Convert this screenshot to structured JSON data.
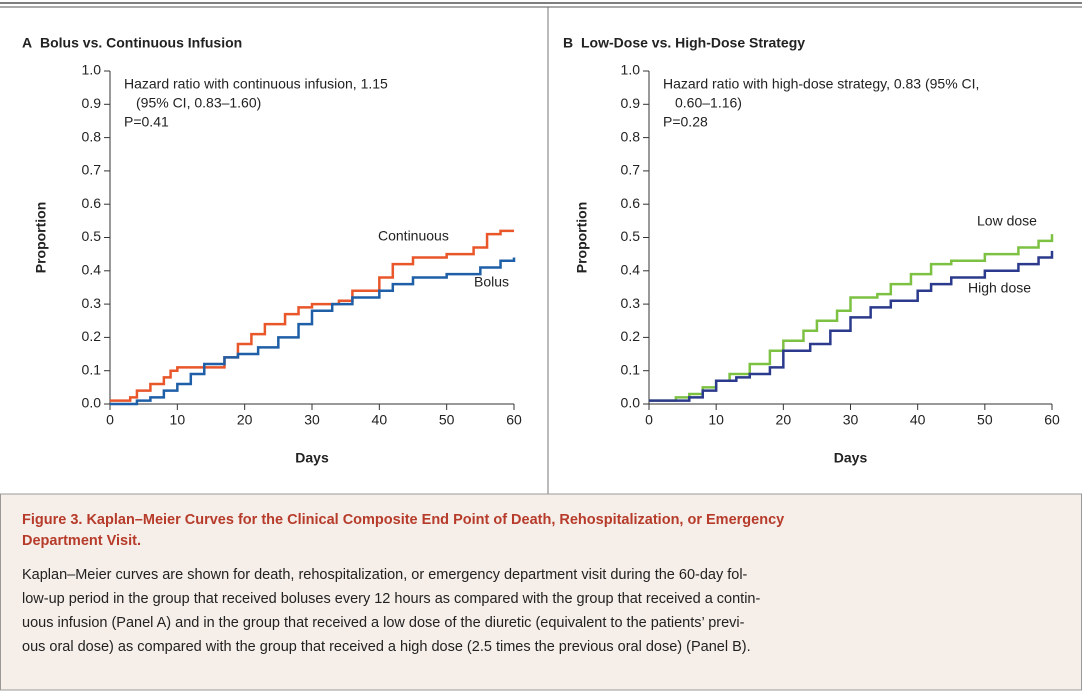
{
  "chart_data": [
    {
      "type": "step",
      "panel": "A",
      "title": "Bolus vs. Continuous Infusion",
      "xlabel": "Days",
      "ylabel": "Proportion",
      "annotations": [
        "Hazard ratio with continuous infusion, 1.15",
        "(95% CI, 0.83–1.60)",
        "P=0.41"
      ],
      "xlim": [
        0,
        60
      ],
      "xticks": [
        0,
        10,
        20,
        30,
        40,
        50,
        60
      ],
      "ylim": [
        0,
        1
      ],
      "yticks": [
        {
          "value": 0,
          "label": "0.0"
        },
        0.1,
        0.2,
        0.3,
        0.4,
        0.5,
        0.6,
        0.7,
        0.8,
        0.9,
        {
          "value": 1,
          "label": "1.0"
        }
      ],
      "series": [
        {
          "name": "Continuous",
          "color": "#e8562a",
          "x": [
            0,
            3,
            4,
            6,
            8,
            9,
            10,
            13,
            17,
            19,
            21,
            23,
            26,
            28,
            30,
            34,
            36,
            40,
            42,
            45,
            50,
            54,
            56,
            58,
            60
          ],
          "values": [
            0.01,
            0.02,
            0.04,
            0.06,
            0.08,
            0.1,
            0.11,
            0.11,
            0.14,
            0.18,
            0.21,
            0.24,
            0.27,
            0.29,
            0.3,
            0.31,
            0.34,
            0.38,
            0.42,
            0.44,
            0.45,
            0.47,
            0.51,
            0.52,
            0.52
          ]
        },
        {
          "name": "Bolus",
          "color": "#1f5fa8",
          "x": [
            0,
            4,
            6,
            8,
            10,
            12,
            14,
            17,
            19,
            22,
            25,
            28,
            30,
            33,
            36,
            40,
            42,
            45,
            50,
            55,
            58,
            60
          ],
          "values": [
            0,
            0.01,
            0.02,
            0.04,
            0.06,
            0.09,
            0.12,
            0.14,
            0.15,
            0.17,
            0.2,
            0.24,
            0.28,
            0.3,
            0.32,
            0.34,
            0.36,
            0.38,
            0.39,
            0.41,
            0.43,
            0.44
          ]
        }
      ]
    },
    {
      "type": "step",
      "panel": "B",
      "title": "Low-Dose vs. High-Dose Strategy",
      "xlabel": "Days",
      "ylabel": "Proportion",
      "annotations": [
        "Hazard ratio with high-dose strategy, 0.83 (95% CI,",
        "0.60–1.16)",
        "P=0.28"
      ],
      "xlim": [
        0,
        60
      ],
      "xticks": [
        0,
        10,
        20,
        30,
        40,
        50,
        60
      ],
      "ylim": [
        0,
        1
      ],
      "yticks": [
        {
          "value": 0,
          "label": "0.0"
        },
        0.1,
        0.2,
        0.3,
        0.4,
        0.5,
        0.6,
        0.7,
        0.8,
        0.9,
        {
          "value": 1,
          "label": "1.0"
        }
      ],
      "series": [
        {
          "name": "Low dose",
          "color": "#7dc143",
          "x": [
            0,
            4,
            6,
            8,
            10,
            12,
            15,
            18,
            20,
            23,
            25,
            28,
            30,
            34,
            36,
            39,
            42,
            45,
            50,
            55,
            58,
            60
          ],
          "values": [
            0.01,
            0.02,
            0.03,
            0.05,
            0.07,
            0.09,
            0.12,
            0.16,
            0.19,
            0.22,
            0.25,
            0.28,
            0.32,
            0.33,
            0.36,
            0.39,
            0.42,
            0.43,
            0.45,
            0.47,
            0.49,
            0.51
          ]
        },
        {
          "name": "High dose",
          "color": "#2b3a8c",
          "x": [
            0,
            4,
            6,
            8,
            10,
            13,
            15,
            18,
            20,
            24,
            27,
            30,
            33,
            36,
            40,
            42,
            45,
            50,
            55,
            58,
            60
          ],
          "values": [
            0.01,
            0.01,
            0.02,
            0.04,
            0.07,
            0.08,
            0.09,
            0.11,
            0.16,
            0.18,
            0.22,
            0.26,
            0.29,
            0.31,
            0.34,
            0.36,
            0.38,
            0.4,
            0.42,
            0.44,
            0.46
          ]
        }
      ]
    }
  ],
  "caption": {
    "title": [
      "Figure 3. Kaplan–Meier Curves for the Clinical Composite End Point of Death, Rehospitalization, or Emergency",
      "Department Visit."
    ],
    "text": [
      "Kaplan–Meier curves are shown for death, rehospitalization, or emergency department visit during the 60-day fol-",
      "low-up period in the group that received boluses every 12 hours as compared with the group that received a contin-",
      "uous infusion (Panel A) and in the group that received a low dose of the diuretic (equivalent to the patients’ previ-",
      "ous oral dose) as compared with the group that received a high dose (2.5 times the previous oral dose) (Panel B)."
    ]
  }
}
